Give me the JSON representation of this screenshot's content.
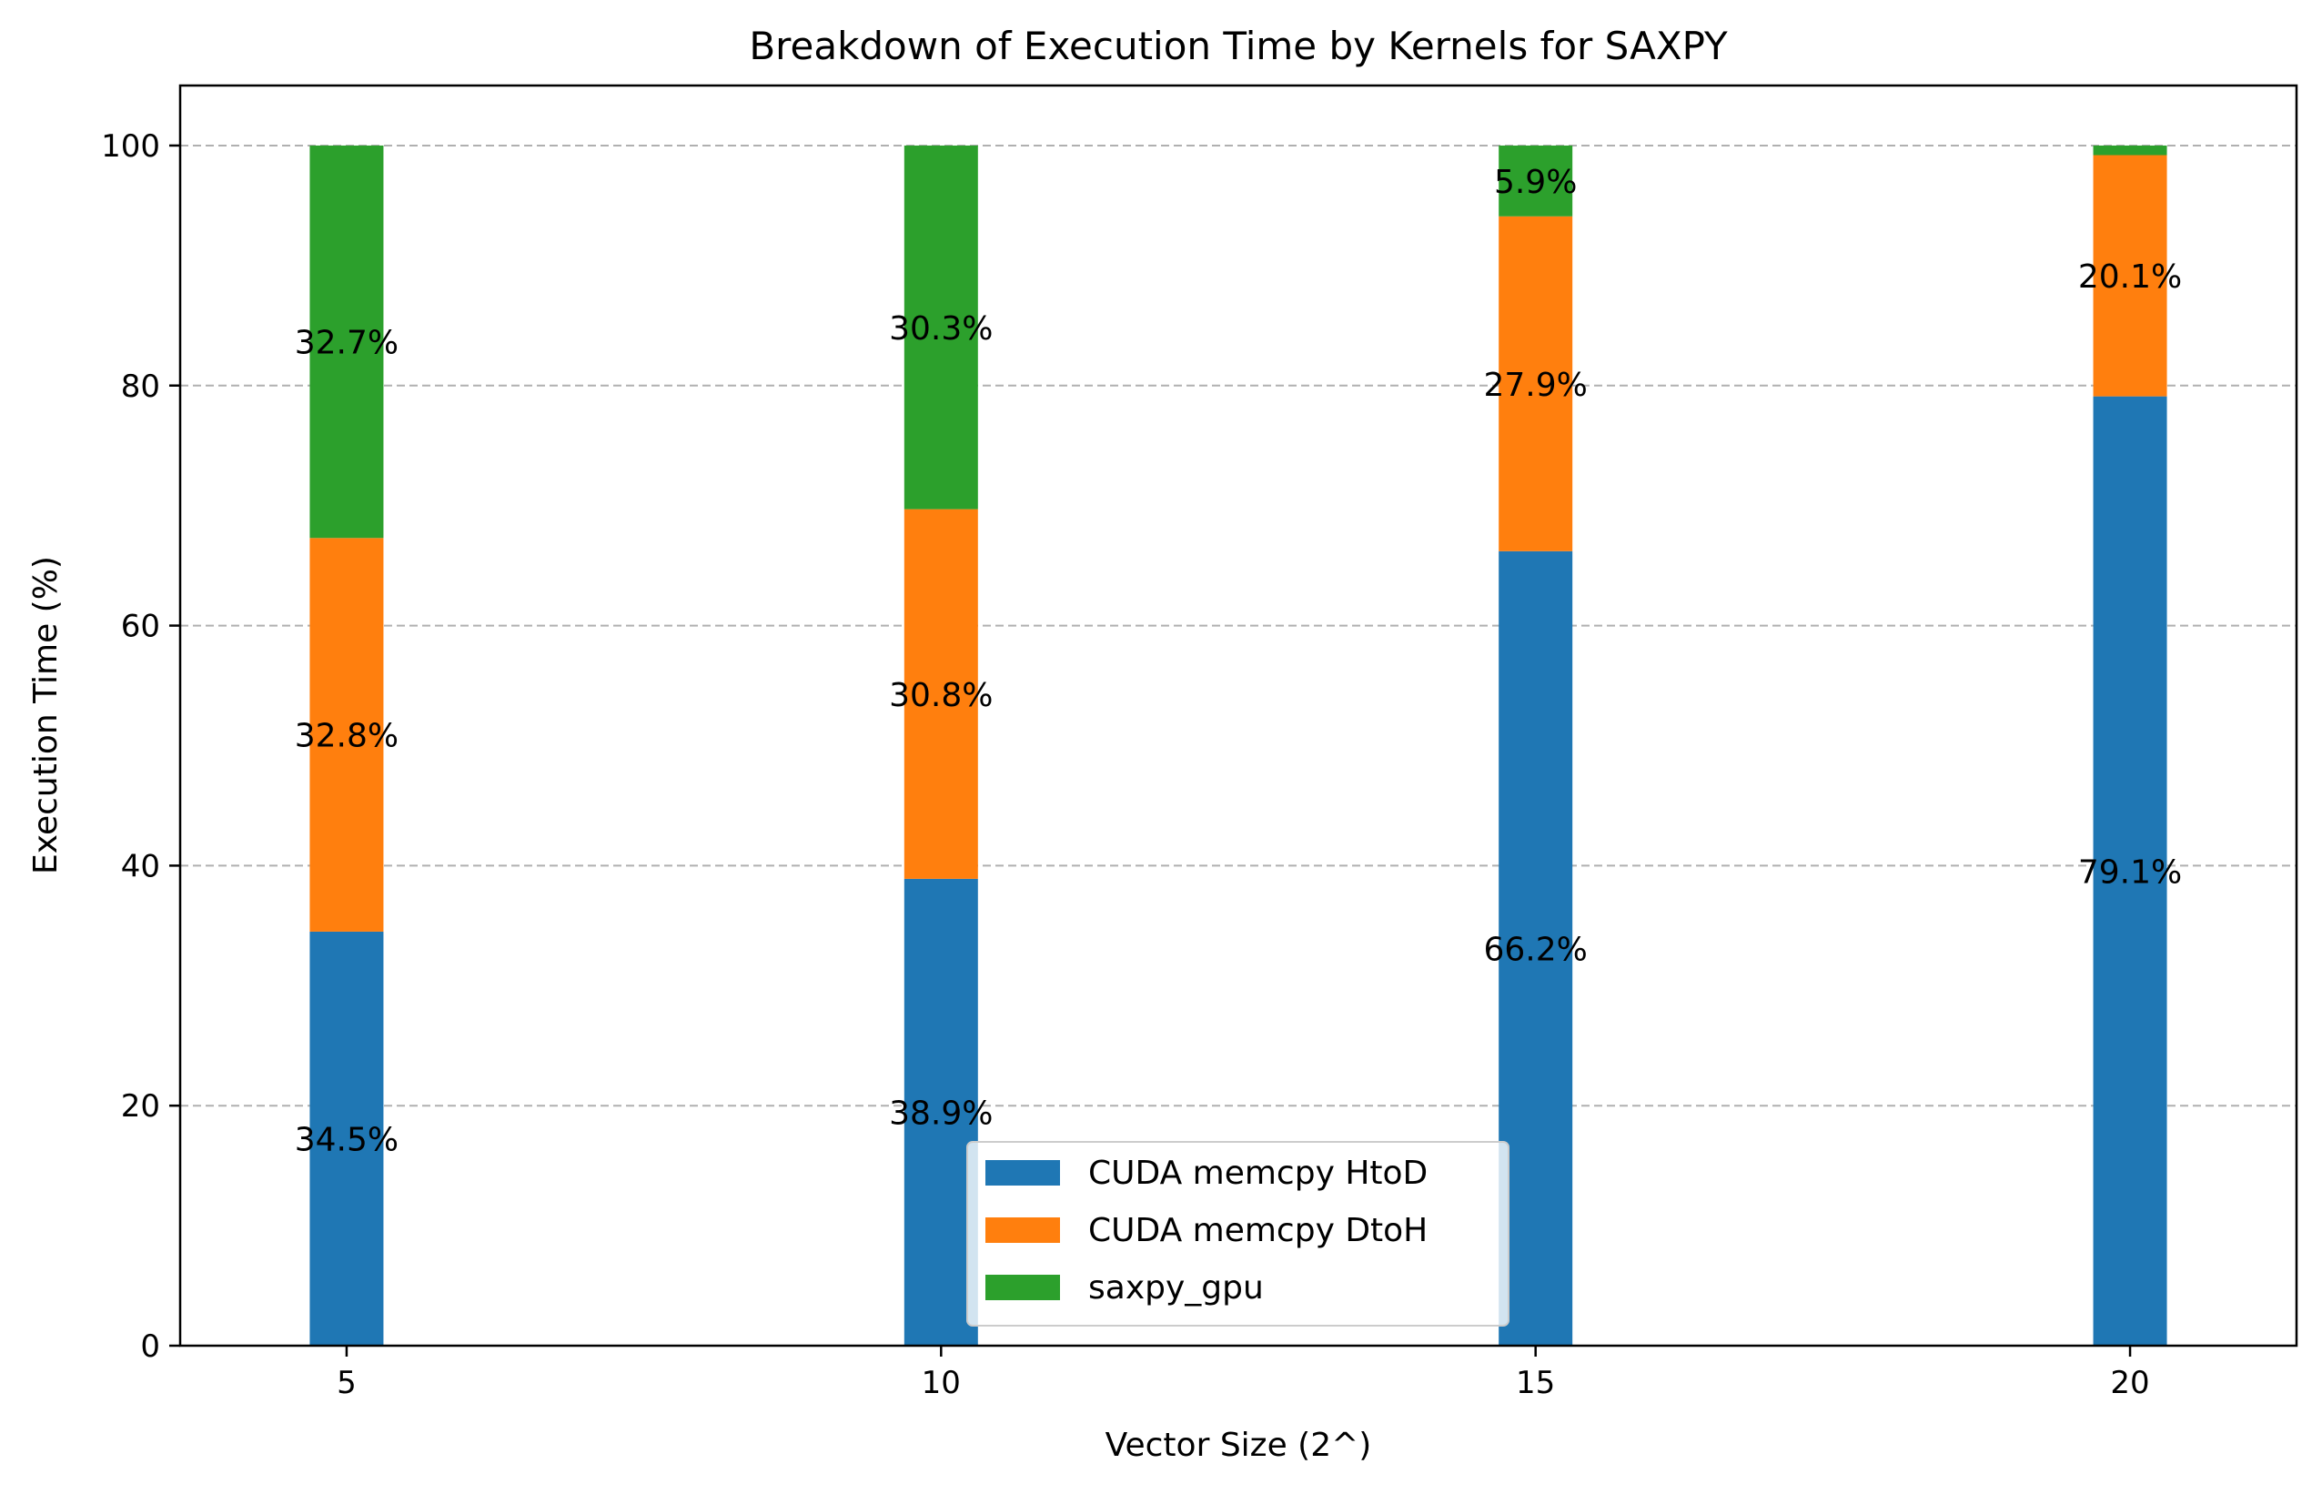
{
  "chart_data": {
    "type": "bar",
    "stacked": true,
    "title": "Breakdown of Execution Time by Kernels for SAXPY",
    "xlabel": "Vector Size (2^)",
    "ylabel": "Execution Time (%)",
    "x": [
      5,
      10,
      15,
      20
    ],
    "x_ticks": [
      "5",
      "10",
      "15",
      "20"
    ],
    "xlim": [
      3.6,
      21.4
    ],
    "ylim": [
      0,
      105
    ],
    "y_ticks": [
      "0",
      "20",
      "40",
      "60",
      "80",
      "100"
    ],
    "grid": "horizontal dashed",
    "legend_position": "lower center",
    "series": [
      {
        "name": "CUDA memcpy HtoD",
        "color": "#1f77b4",
        "values": [
          34.5,
          38.9,
          66.2,
          79.1
        ],
        "labels": [
          "34.5%",
          "38.9%",
          "66.2%",
          "79.1%"
        ]
      },
      {
        "name": "CUDA memcpy DtoH",
        "color": "#ff7f0e",
        "values": [
          32.8,
          30.8,
          27.9,
          20.1
        ],
        "labels": [
          "32.8%",
          "30.8%",
          "27.9%",
          "20.1%"
        ]
      },
      {
        "name": "saxpy_gpu",
        "color": "#2ca02c",
        "values": [
          32.7,
          30.3,
          5.9,
          0.8
        ],
        "labels": [
          "32.7%",
          "30.3%",
          "5.9%",
          ""
        ]
      }
    ]
  }
}
